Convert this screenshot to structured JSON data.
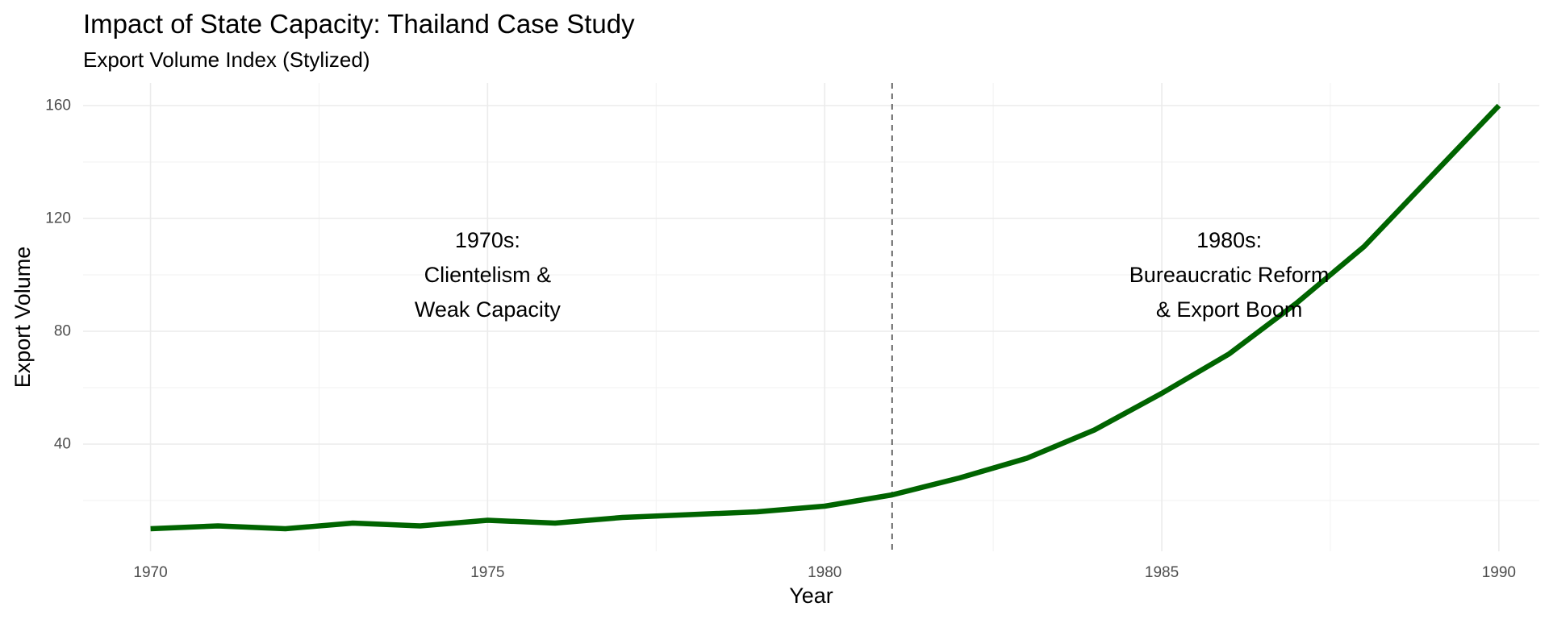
{
  "chart_data": {
    "type": "line",
    "title": "Impact of State Capacity: Thailand Case Study",
    "subtitle": "Export Volume Index (Stylized)",
    "xlabel": "Year",
    "ylabel": "Export Volume",
    "xlim": [
      1969.0,
      1990.6
    ],
    "ylim": [
      2,
      168
    ],
    "x_ticks": [
      1970,
      1975,
      1980,
      1985,
      1990
    ],
    "y_ticks": [
      40,
      80,
      120,
      160
    ],
    "grid": true,
    "line_color": "#006400",
    "series": [
      {
        "name": "Export Volume",
        "x": [
          1970,
          1971,
          1972,
          1973,
          1974,
          1975,
          1976,
          1977,
          1978,
          1979,
          1980,
          1981,
          1982,
          1983,
          1984,
          1985,
          1986,
          1987,
          1988,
          1989,
          1990
        ],
        "values": [
          10,
          11,
          10,
          12,
          11,
          13,
          12,
          14,
          15,
          16,
          18,
          22,
          28,
          35,
          45,
          58,
          72,
          90,
          110,
          135,
          160
        ]
      }
    ],
    "vline": {
      "x": 1981,
      "style": "dashed",
      "color": "#555555"
    },
    "annotations": [
      {
        "x": 1975,
        "y": 100,
        "lines": [
          "1970s:",
          "Clientelism &",
          "Weak Capacity"
        ]
      },
      {
        "x": 1986,
        "y": 100,
        "lines": [
          "1980s:",
          "Bureaucratic Reform",
          "& Export Boom"
        ]
      }
    ]
  }
}
